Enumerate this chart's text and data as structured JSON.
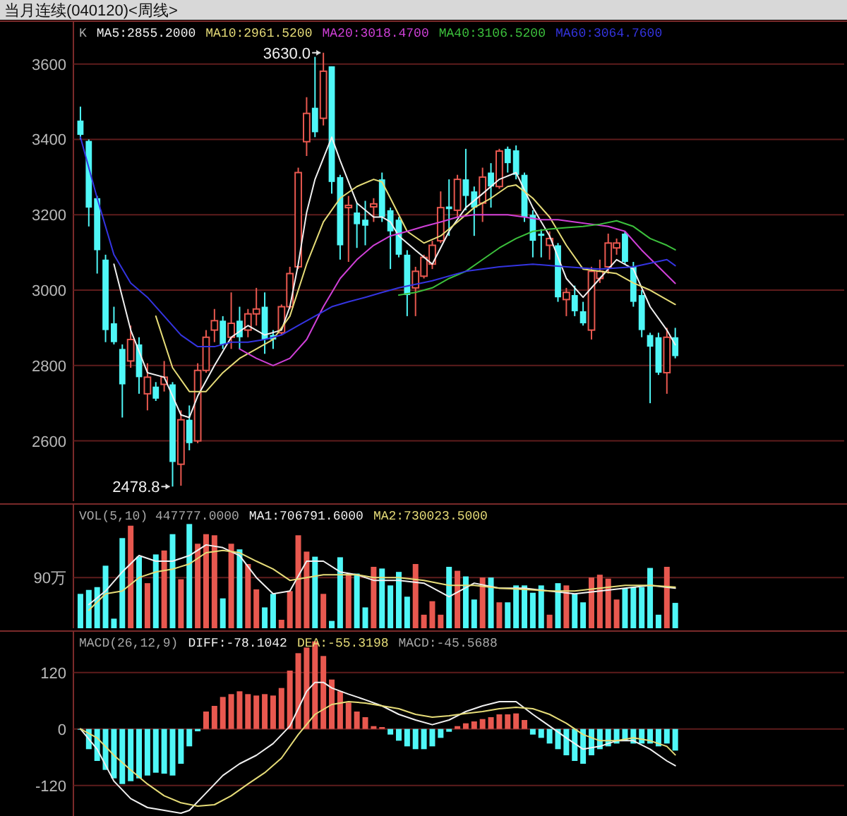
{
  "chart_data": [
    {
      "type": "candlestick",
      "title": "当月连续(040120)<周线>",
      "legend": "top left",
      "grid": "y",
      "tick_labels": "y",
      "categories": [
        null,
        null,
        null,
        null,
        null,
        null,
        null,
        null,
        null,
        null,
        null,
        null,
        null,
        null,
        null,
        null,
        null,
        null,
        null,
        null,
        null,
        null,
        null,
        null,
        null,
        null,
        null,
        null,
        null,
        null,
        null,
        null,
        null,
        null,
        null,
        null,
        null,
        null,
        null,
        null,
        null,
        null,
        null,
        null,
        null,
        null,
        null,
        null,
        null,
        null,
        null,
        null,
        null,
        null,
        null,
        null,
        null,
        null,
        null,
        null,
        null,
        null,
        null,
        null,
        null,
        null,
        null,
        null,
        null,
        null,
        null,
        null
      ],
      "ylim": [
        2440,
        3710
      ],
      "yticks": [
        2600,
        2800,
        3000,
        3200,
        3400,
        3600
      ],
      "annotations": [
        "K",
        "3630.0",
        "2478.8"
      ],
      "ohlc": [
        [
          3450,
          3487,
          3400,
          3412
        ],
        [
          3396,
          3400,
          3169,
          3219
        ],
        [
          3244,
          3250,
          3044,
          3106
        ],
        [
          3081,
          3094,
          2862,
          2894
        ],
        [
          2912,
          2956,
          2856,
          2862
        ],
        [
          2844,
          2856,
          2662,
          2750
        ],
        [
          2812,
          2906,
          2794,
          2869
        ],
        [
          2856,
          2875,
          2725,
          2769
        ],
        [
          2725,
          2806,
          2681,
          2769
        ],
        [
          2744,
          2756,
          2706,
          2712
        ],
        [
          2750,
          2812,
          2731,
          2769
        ],
        [
          2750,
          2756,
          2478.8,
          2544
        ],
        [
          2538,
          2681,
          2481,
          2656
        ],
        [
          2656,
          2694,
          2575,
          2594
        ],
        [
          2600,
          2806,
          2594,
          2787
        ],
        [
          2787,
          2894,
          2781,
          2875
        ],
        [
          2894,
          2950,
          2862,
          2919
        ],
        [
          2919,
          2931,
          2844,
          2856
        ],
        [
          2875,
          2994,
          2844,
          2912
        ],
        [
          2919,
          2956,
          2844,
          2875
        ],
        [
          2894,
          2950,
          2875,
          2937
        ],
        [
          2937,
          3006,
          2906,
          2950
        ],
        [
          2956,
          2994,
          2831,
          2869
        ],
        [
          2881,
          2894,
          2844,
          2869
        ],
        [
          2887,
          2962,
          2881,
          2956
        ],
        [
          2956,
          3062,
          2950,
          3044
        ],
        [
          3062,
          3325,
          3056,
          3312
        ],
        [
          3394,
          3512,
          3356,
          3469
        ],
        [
          3484,
          3619,
          3406,
          3419
        ],
        [
          3456,
          3630,
          3437,
          3581
        ],
        [
          3594,
          3594,
          3256,
          3287
        ],
        [
          3300,
          3306,
          3081,
          3119
        ],
        [
          3219,
          3250,
          3075,
          3225
        ],
        [
          3206,
          3231,
          3112,
          3175
        ],
        [
          3187,
          3237,
          3119,
          3171
        ],
        [
          3221,
          3244,
          3181,
          3229
        ],
        [
          3294,
          3312,
          3181,
          3194
        ],
        [
          3212,
          3219,
          3056,
          3156
        ],
        [
          3187,
          3194,
          3087,
          3094
        ],
        [
          3094,
          3106,
          2931,
          2987
        ],
        [
          3006,
          3062,
          2931,
          3050
        ],
        [
          3037,
          3094,
          3031,
          3087
        ],
        [
          3069,
          3131,
          3056,
          3119
        ],
        [
          3131,
          3262,
          3125,
          3219
        ],
        [
          3222,
          3294,
          3144,
          3215
        ],
        [
          3212,
          3306,
          3194,
          3294
        ],
        [
          3294,
          3375,
          3212,
          3250
        ],
        [
          3262,
          3275,
          3144,
          3219
        ],
        [
          3231,
          3325,
          3181,
          3300
        ],
        [
          3312,
          3337,
          3219,
          3275
        ],
        [
          3275,
          3375,
          3269,
          3369
        ],
        [
          3375,
          3381,
          3312,
          3337
        ],
        [
          3371,
          3384,
          3294,
          3306
        ],
        [
          3306,
          3312,
          3181,
          3194
        ],
        [
          3200,
          3212,
          3087,
          3131
        ],
        [
          3150,
          3162,
          3087,
          3144
        ],
        [
          3119,
          3156,
          3081,
          3137
        ],
        [
          3119,
          3125,
          2969,
          2981
        ],
        [
          2975,
          3006,
          2931,
          2994
        ],
        [
          2987,
          3012,
          2931,
          2944
        ],
        [
          2944,
          2969,
          2906,
          2912
        ],
        [
          2894,
          3062,
          2869,
          3050
        ],
        [
          3031,
          3081,
          3019,
          3050
        ],
        [
          3062,
          3150,
          3044,
          3125
        ],
        [
          3112,
          3137,
          3094,
          3125
        ],
        [
          3150,
          3156,
          3069,
          3075
        ],
        [
          3062,
          3075,
          2956,
          2969
        ],
        [
          2987,
          3000,
          2875,
          2894
        ],
        [
          2881,
          2887,
          2700,
          2850
        ],
        [
          2875,
          2887,
          2775,
          2781
        ],
        [
          2781,
          2900,
          2725,
          2875
        ],
        [
          2875,
          2900,
          2819,
          2825
        ]
      ],
      "colors": [
        "#4ff7f7",
        "#4ff7f7",
        "#4ff7f7",
        "#4ff7f7",
        "#4ff7f7",
        "#4ff7f7",
        "#e8584f",
        "#4ff7f7",
        "#e8584f",
        "#4ff7f7",
        "#e8584f",
        "#4ff7f7",
        "#e8584f",
        "#4ff7f7",
        "#e8584f",
        "#e8584f",
        "#e8584f",
        "#4ff7f7",
        "#e8584f",
        "#4ff7f7",
        "#e8584f",
        "#e8584f",
        "#4ff7f7",
        "#4ff7f7",
        "#e8584f",
        "#e8584f",
        "#e8584f",
        "#e8584f",
        "#4ff7f7",
        "#e8584f",
        "#4ff7f7",
        "#4ff7f7",
        "#e8584f",
        "#4ff7f7",
        "#4ff7f7",
        "#e8584f",
        "#4ff7f7",
        "#4ff7f7",
        "#4ff7f7",
        "#4ff7f7",
        "#e8584f",
        "#e8584f",
        "#e8584f",
        "#e8584f",
        "#4ff7f7",
        "#e8584f",
        "#4ff7f7",
        "#4ff7f7",
        "#e8584f",
        "#4ff7f7",
        "#e8584f",
        "#4ff7f7",
        "#4ff7f7",
        "#4ff7f7",
        "#4ff7f7",
        "#4ff7f7",
        "#e8584f",
        "#4ff7f7",
        "#e8584f",
        "#4ff7f7",
        "#4ff7f7",
        "#e8584f",
        "#e8584f",
        "#e8584f",
        "#e8584f",
        "#4ff7f7",
        "#4ff7f7",
        "#4ff7f7",
        "#4ff7f7",
        "#4ff7f7",
        "#e8584f",
        "#4ff7f7"
      ],
      "series": [
        {
          "name": "MA5:2855.2000",
          "type": "line",
          "color": "#f0f0f0",
          "values": [
            null,
            null,
            null,
            null,
            3069,
            null,
            2894,
            null,
            2781,
            null,
            2769,
            2719,
            2669,
            2662,
            2719,
            null,
            2800,
            null,
            2875,
            null,
            2906,
            null,
            2881,
            null,
            2894,
            2956,
            3069,
            3206,
            3294,
            3350,
            3406,
            3344,
            null,
            3231,
            null,
            3194,
            3194,
            3181,
            3144,
            null,
            3106,
            null,
            3069,
            null,
            3156,
            null,
            3219,
            null,
            3256,
            null,
            3294,
            null,
            3312,
            null,
            3219,
            null,
            3144,
            null,
            3031,
            null,
            2981,
            null,
            3031,
            null,
            3081,
            null,
            3056,
            null,
            2956,
            null,
            2894,
            2855
          ]
        },
        {
          "name": "MA10:2961.5200",
          "type": "line",
          "color": "#e6dc78",
          "values": [
            null,
            null,
            null,
            null,
            null,
            null,
            null,
            null,
            null,
            2931,
            null,
            2794,
            null,
            2731,
            null,
            2731,
            null,
            2781,
            null,
            2819,
            null,
            2844,
            null,
            2869,
            null,
            2931,
            null,
            3069,
            null,
            3181,
            null,
            3244,
            null,
            3275,
            null,
            3294,
            3287,
            3244,
            null,
            3156,
            null,
            3125,
            null,
            3144,
            null,
            3181,
            null,
            3219,
            null,
            3244,
            null,
            3275,
            3279,
            null,
            3244,
            null,
            3194,
            null,
            3119,
            null,
            3056,
            null,
            3050,
            null,
            3044,
            null,
            3019,
            null,
            3000,
            null,
            null,
            2962
          ]
        },
        {
          "name": "MA20:3018.4700",
          "type": "line",
          "color": "#d040d8",
          "values": [
            null,
            null,
            null,
            null,
            null,
            null,
            null,
            null,
            null,
            null,
            null,
            null,
            null,
            null,
            null,
            null,
            null,
            null,
            null,
            2844,
            null,
            2819,
            null,
            2800,
            null,
            2819,
            null,
            2869,
            null,
            2956,
            null,
            3031,
            null,
            3081,
            null,
            3119,
            null,
            3144,
            null,
            3156,
            null,
            3169,
            null,
            3181,
            null,
            3194,
            null,
            3200,
            null,
            3200,
            null,
            3200,
            null,
            3194,
            null,
            3187,
            null,
            3187,
            null,
            3181,
            null,
            3175,
            null,
            3169,
            null,
            3156,
            null,
            3106,
            null,
            3062,
            null,
            3018
          ]
        },
        {
          "name": "MA40:3106.5200",
          "type": "line",
          "color": "#3cc03c",
          "values": [
            null,
            null,
            null,
            null,
            null,
            null,
            null,
            null,
            null,
            null,
            null,
            null,
            null,
            null,
            null,
            null,
            null,
            null,
            null,
            null,
            null,
            null,
            null,
            null,
            null,
            null,
            null,
            null,
            null,
            null,
            null,
            null,
            null,
            null,
            null,
            null,
            null,
            null,
            2987,
            null,
            2994,
            null,
            3006,
            null,
            3031,
            null,
            3050,
            null,
            3081,
            null,
            3112,
            null,
            3137,
            null,
            3156,
            null,
            3162,
            null,
            3166,
            null,
            3169,
            null,
            3175,
            null,
            3184,
            null,
            3169,
            null,
            3137,
            null,
            3119,
            3107
          ]
        },
        {
          "name": "MA60:3064.7600",
          "type": "line",
          "color": "#3434e0",
          "values": [
            3406,
            null,
            3244,
            null,
            3094,
            null,
            3019,
            null,
            2981,
            null,
            2931,
            null,
            2881,
            null,
            2850,
            null,
            2850,
            null,
            2862,
            null,
            2862,
            null,
            2869,
            null,
            2881,
            null,
            2906,
            null,
            2931,
            null,
            2956,
            null,
            2969,
            null,
            2981,
            null,
            2994,
            null,
            3006,
            null,
            null,
            null,
            3025,
            null,
            null,
            null,
            3050,
            null,
            null,
            null,
            3062,
            null,
            null,
            null,
            3069,
            null,
            null,
            null,
            3062,
            null,
            null,
            null,
            3056,
            null,
            null,
            null,
            3062,
            null,
            null,
            null,
            3081,
            3065
          ]
        }
      ]
    },
    {
      "type": "bar",
      "legend": "top left",
      "tick_labels": "y",
      "ref_lines": [
        {
          "axis": "y",
          "value": 90,
          "color": "#5e1c1c"
        }
      ],
      "categories": [
        null,
        null,
        null,
        null,
        null,
        null,
        null,
        null,
        null,
        null,
        null,
        null,
        null,
        null,
        null,
        null,
        null,
        null,
        null,
        null,
        null,
        null,
        null,
        null,
        null,
        null,
        null,
        null,
        null,
        null,
        null,
        null,
        null,
        null,
        null,
        null,
        null,
        null,
        null,
        null,
        null,
        null,
        null,
        null,
        null,
        null,
        null,
        null,
        null,
        null,
        null,
        null,
        null,
        null,
        null,
        null,
        null,
        null,
        null,
        null,
        null,
        null,
        null,
        null,
        null,
        null,
        null,
        null,
        null,
        null,
        null,
        null
      ],
      "ylim": [
        0,
        218
      ],
      "yticks": [
        {
          "value": 90,
          "label": "90万"
        }
      ],
      "annotations": [
        "VOL(5,10) 447777.0000"
      ],
      "values": [
        61,
        68,
        73,
        111,
        17,
        160,
        182,
        127,
        80,
        131,
        138,
        167,
        87,
        185,
        150,
        167,
        165,
        53,
        150,
        140,
        114,
        69,
        37,
        61,
        15,
        66,
        165,
        136,
        127,
        61,
        13,
        126,
        97,
        97,
        37,
        109,
        106,
        76,
        100,
        56,
        114,
        24,
        48,
        24,
        109,
        102,
        92,
        51,
        90,
        90,
        46,
        46,
        76,
        76,
        63,
        76,
        24,
        80,
        76,
        61,
        46,
        90,
        95,
        88,
        51,
        71,
        73,
        73,
        107,
        24,
        109,
        45
      ],
      "colors": [
        "#4ff7f7",
        "#4ff7f7",
        "#4ff7f7",
        "#4ff7f7",
        "#4ff7f7",
        "#4ff7f7",
        "#e8584f",
        "#4ff7f7",
        "#e8584f",
        "#4ff7f7",
        "#e8584f",
        "#4ff7f7",
        "#e8584f",
        "#4ff7f7",
        "#e8584f",
        "#e8584f",
        "#e8584f",
        "#4ff7f7",
        "#e8584f",
        "#4ff7f7",
        "#e8584f",
        "#e8584f",
        "#4ff7f7",
        "#4ff7f7",
        "#e8584f",
        "#e8584f",
        "#e8584f",
        "#e8584f",
        "#4ff7f7",
        "#e8584f",
        "#4ff7f7",
        "#4ff7f7",
        "#e8584f",
        "#4ff7f7",
        "#4ff7f7",
        "#e8584f",
        "#4ff7f7",
        "#4ff7f7",
        "#4ff7f7",
        "#4ff7f7",
        "#e8584f",
        "#e8584f",
        "#e8584f",
        "#e8584f",
        "#4ff7f7",
        "#e8584f",
        "#4ff7f7",
        "#4ff7f7",
        "#e8584f",
        "#4ff7f7",
        "#e8584f",
        "#4ff7f7",
        "#4ff7f7",
        "#4ff7f7",
        "#4ff7f7",
        "#4ff7f7",
        "#e8584f",
        "#4ff7f7",
        "#e8584f",
        "#4ff7f7",
        "#4ff7f7",
        "#e8584f",
        "#e8584f",
        "#e8584f",
        "#e8584f",
        "#4ff7f7",
        "#4ff7f7",
        "#4ff7f7",
        "#4ff7f7",
        "#4ff7f7",
        "#e8584f",
        "#4ff7f7"
      ],
      "series": [
        {
          "name": "MA1:706791.6000",
          "type": "line",
          "color": "#f0f0f0",
          "values": [
            null,
            42,
            null,
            66,
            null,
            100,
            null,
            129,
            null,
            119,
            null,
            119,
            null,
            129,
            null,
            148,
            null,
            143,
            null,
            129,
            null,
            90,
            null,
            61,
            null,
            66,
            null,
            119,
            null,
            119,
            null,
            100,
            null,
            95,
            null,
            85,
            null,
            null,
            85,
            null,
            null,
            80,
            null,
            null,
            56,
            null,
            null,
            80,
            null,
            null,
            71,
            null,
            null,
            71,
            null,
            null,
            66,
            null,
            null,
            61,
            null,
            null,
            66,
            null,
            null,
            71,
            null,
            null,
            76,
            null,
            null,
            71
          ]
        },
        {
          "name": "MA2:730023.5000",
          "type": "line",
          "color": "#e6dc78",
          "values": [
            null,
            32,
            null,
            61,
            null,
            66,
            null,
            90,
            null,
            100,
            null,
            105,
            null,
            114,
            null,
            134,
            null,
            138,
            null,
            134,
            null,
            119,
            null,
            105,
            null,
            85,
            null,
            90,
            null,
            95,
            null,
            95,
            null,
            95,
            null,
            90,
            null,
            null,
            90,
            null,
            null,
            85,
            null,
            null,
            76,
            null,
            null,
            76,
            null,
            null,
            71,
            null,
            null,
            69,
            null,
            null,
            66,
            null,
            null,
            66,
            null,
            null,
            71,
            null,
            null,
            76,
            null,
            null,
            76,
            null,
            null,
            73
          ]
        }
      ]
    },
    {
      "type": "bar",
      "legend": "top left",
      "grid": "y",
      "tick_labels": "y",
      "categories": [
        null,
        null,
        null,
        null,
        null,
        null,
        null,
        null,
        null,
        null,
        null,
        null,
        null,
        null,
        null,
        null,
        null,
        null,
        null,
        null,
        null,
        null,
        null,
        null,
        null,
        null,
        null,
        null,
        null,
        null,
        null,
        null,
        null,
        null,
        null,
        null,
        null,
        null,
        null,
        null,
        null,
        null,
        null,
        null,
        null,
        null,
        null,
        null,
        null,
        null,
        null,
        null,
        null,
        null,
        null,
        null,
        null,
        null,
        null,
        null,
        null,
        null,
        null,
        null,
        null,
        null,
        null,
        null,
        null,
        null,
        null,
        null
      ],
      "ylim": [
        -185,
        205
      ],
      "yticks": [
        -120,
        0,
        120
      ],
      "annotations": [
        "MACD(26,12,9)",
        "MACD:-45.5688"
      ],
      "values": [
        0,
        -43,
        -68,
        -87,
        -105,
        -117,
        -111,
        -105,
        -99,
        -93,
        -95,
        -99,
        -74,
        -37,
        -5,
        37,
        49,
        68,
        74,
        80,
        74,
        71,
        74,
        71,
        87,
        124,
        161,
        173,
        186,
        155,
        105,
        80,
        56,
        37,
        25,
        6,
        4,
        -12,
        -25,
        -37,
        -43,
        -43,
        -37,
        -19,
        -6,
        6,
        12,
        16,
        21,
        25,
        31,
        31,
        33,
        19,
        -12,
        -19,
        -31,
        -43,
        -56,
        -68,
        -74,
        -56,
        -43,
        -37,
        -31,
        -25,
        -31,
        -31,
        -31,
        -37,
        -31,
        -46
      ],
      "colors": [
        "#4ff7f7",
        "#4ff7f7",
        "#4ff7f7",
        "#4ff7f7",
        "#4ff7f7",
        "#4ff7f7",
        "#4ff7f7",
        "#4ff7f7",
        "#4ff7f7",
        "#4ff7f7",
        "#4ff7f7",
        "#4ff7f7",
        "#4ff7f7",
        "#4ff7f7",
        "#4ff7f7",
        "#e8584f",
        "#e8584f",
        "#e8584f",
        "#e8584f",
        "#e8584f",
        "#e8584f",
        "#e8584f",
        "#e8584f",
        "#e8584f",
        "#e8584f",
        "#e8584f",
        "#e8584f",
        "#e8584f",
        "#e8584f",
        "#e8584f",
        "#e8584f",
        "#e8584f",
        "#e8584f",
        "#e8584f",
        "#e8584f",
        "#e8584f",
        "#e8584f",
        "#4ff7f7",
        "#4ff7f7",
        "#4ff7f7",
        "#4ff7f7",
        "#4ff7f7",
        "#4ff7f7",
        "#4ff7f7",
        "#4ff7f7",
        "#e8584f",
        "#e8584f",
        "#e8584f",
        "#e8584f",
        "#e8584f",
        "#e8584f",
        "#e8584f",
        "#e8584f",
        "#e8584f",
        "#4ff7f7",
        "#4ff7f7",
        "#4ff7f7",
        "#4ff7f7",
        "#4ff7f7",
        "#4ff7f7",
        "#4ff7f7",
        "#4ff7f7",
        "#4ff7f7",
        "#4ff7f7",
        "#4ff7f7",
        "#4ff7f7",
        "#4ff7f7",
        "#4ff7f7",
        "#4ff7f7",
        "#4ff7f7",
        "#4ff7f7",
        "#4ff7f7"
      ],
      "series": [
        {
          "name": "DIFF:-78.1042",
          "type": "line",
          "color": "#f0f0f0",
          "values": [
            0,
            null,
            -43,
            null,
            -111,
            null,
            -148,
            null,
            -167,
            null,
            -173,
            null,
            -179,
            -173,
            null,
            -136,
            null,
            -99,
            null,
            -74,
            null,
            -56,
            null,
            -31,
            null,
            6,
            43,
            80,
            99,
            99,
            87,
            null,
            74,
            null,
            62,
            null,
            49,
            null,
            31,
            null,
            19,
            null,
            9,
            null,
            19,
            null,
            37,
            null,
            49,
            null,
            58,
            null,
            58,
            null,
            31,
            null,
            6,
            null,
            -19,
            null,
            -43,
            null,
            -37,
            null,
            -25,
            null,
            -25,
            null,
            -43,
            null,
            -68,
            -78
          ]
        },
        {
          "name": "DEA:-55.3198",
          "type": "line",
          "color": "#e6dc78",
          "values": [
            0,
            null,
            -19,
            null,
            -56,
            null,
            -87,
            null,
            -117,
            null,
            -142,
            null,
            -157,
            null,
            -164,
            null,
            -161,
            null,
            -142,
            null,
            -117,
            null,
            -93,
            null,
            -62,
            null,
            -12,
            null,
            31,
            null,
            52,
            null,
            58,
            null,
            55,
            null,
            49,
            null,
            43,
            null,
            31,
            null,
            25,
            null,
            28,
            null,
            33,
            null,
            37,
            null,
            43,
            null,
            46,
            null,
            43,
            null,
            31,
            null,
            12,
            null,
            -12,
            null,
            -25,
            null,
            -25,
            null,
            -19,
            null,
            -25,
            null,
            -37,
            -55
          ]
        }
      ]
    }
  ]
}
